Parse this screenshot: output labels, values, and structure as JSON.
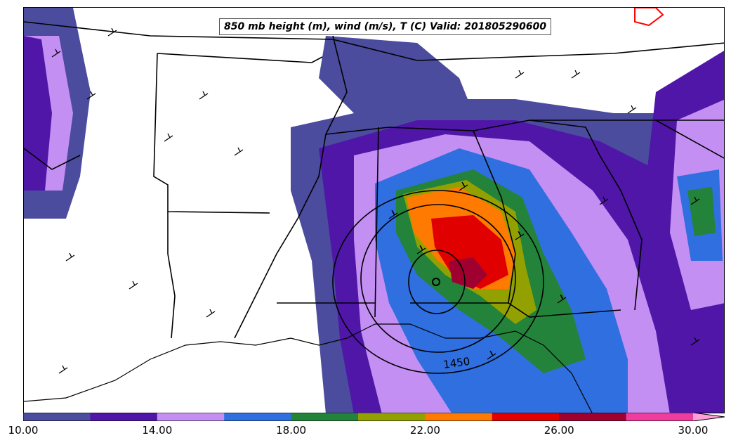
{
  "title": "850 mb height (m), wind (m/s), T (C) Valid: 201805290600",
  "contour_label": "1450",
  "colorbar": {
    "colors": [
      "#4b4c9e",
      "#4f16a8",
      "#c38ff3",
      "#2f6fe0",
      "#23833a",
      "#93a100",
      "#ff7a00",
      "#e00000",
      "#a00030",
      "#f03c9c",
      "#ffa0d8"
    ],
    "ticks": [
      "10.00",
      "14.00",
      "18.00",
      "22.00",
      "26.00",
      "30.00"
    ]
  },
  "map": {
    "color_fill_field": "850 mb temperature (C)",
    "contour_field": "850 mb geopotential height (m)",
    "barb_field": "850 mb wind (m/s)"
  }
}
